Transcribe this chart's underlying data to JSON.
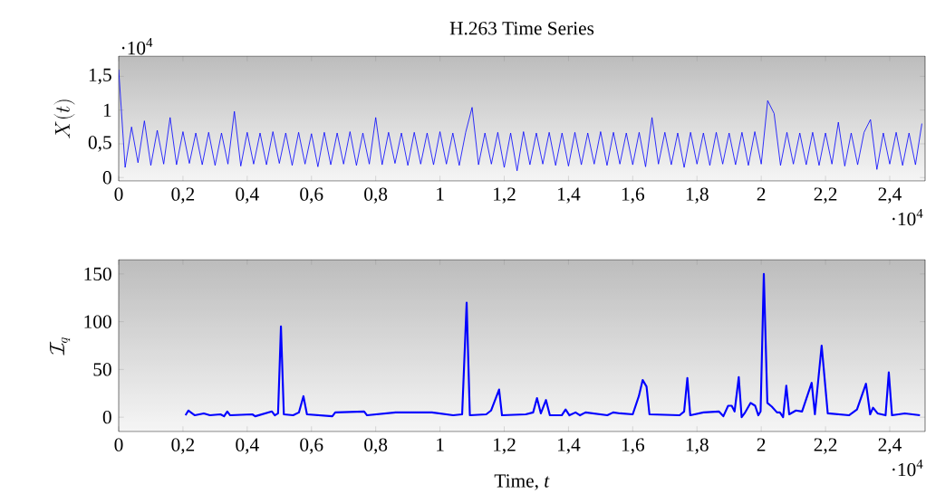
{
  "chart_data": [
    {
      "type": "line",
      "title": "H.263 Time Series",
      "ylabel": "X(t)",
      "annotations": [
        "·10$^{4}$",
        "·10$^{4}$"
      ],
      "x": [
        0,
        0.02,
        0.04,
        0.06,
        0.08,
        0.1,
        0.12,
        0.14,
        0.16,
        0.18,
        0.2,
        0.22,
        0.24,
        0.26,
        0.28,
        0.3,
        0.32,
        0.34,
        0.36,
        0.38,
        0.4,
        0.42,
        0.44,
        0.46,
        0.48,
        0.5,
        0.52,
        0.54,
        0.56,
        0.58,
        0.6,
        0.62,
        0.64,
        0.66,
        0.68,
        0.7,
        0.72,
        0.74,
        0.76,
        0.78,
        0.8,
        0.82,
        0.84,
        0.86,
        0.88,
        0.9,
        0.92,
        0.94,
        0.96,
        0.98,
        1,
        1.02,
        1.04,
        1.06,
        1.08,
        1.1,
        1.12,
        1.14,
        1.16,
        1.18,
        1.2,
        1.22,
        1.24,
        1.26,
        1.28,
        1.3,
        1.32,
        1.34,
        1.36,
        1.38,
        1.4,
        1.42,
        1.44,
        1.46,
        1.48,
        1.5,
        1.52,
        1.54,
        1.56,
        1.58,
        1.6,
        1.62,
        1.64,
        1.66,
        1.68,
        1.7,
        1.72,
        1.74,
        1.76,
        1.78,
        1.8,
        1.82,
        1.84,
        1.86,
        1.88,
        1.9,
        1.92,
        1.94,
        1.96,
        1.98,
        2,
        2.02,
        2.04,
        2.06,
        2.08,
        2.1,
        2.12,
        2.14,
        2.16,
        2.18,
        2.2,
        2.22,
        2.24,
        2.26,
        2.28,
        2.3,
        2.32,
        2.34,
        2.36,
        2.38,
        2.4,
        2.42,
        2.44,
        2.46,
        2.48,
        2.5
      ],
      "series": [
        {
          "color": "#0000ff",
          "values": [
            1.6,
            0.15,
            0.75,
            0.22,
            0.84,
            0.18,
            0.7,
            0.2,
            0.89,
            0.19,
            0.68,
            0.21,
            0.66,
            0.19,
            0.67,
            0.18,
            0.66,
            0.2,
            0.98,
            0.17,
            0.67,
            0.2,
            0.66,
            0.19,
            0.68,
            0.21,
            0.66,
            0.18,
            0.67,
            0.2,
            0.65,
            0.16,
            0.67,
            0.19,
            0.66,
            0.2,
            0.68,
            0.18,
            0.66,
            0.2,
            0.89,
            0.19,
            0.67,
            0.21,
            0.66,
            0.18,
            0.67,
            0.2,
            0.66,
            0.19,
            0.68,
            0.2,
            0.66,
            0.18,
            0.67,
            1.04,
            0.19,
            0.66,
            0.2,
            0.67,
            0.15,
            0.66,
            0.1,
            0.68,
            0.19,
            0.66,
            0.2,
            0.67,
            0.18,
            0.66,
            0.17,
            0.67,
            0.19,
            0.66,
            0.2,
            0.68,
            0.18,
            0.67,
            0.2,
            0.66,
            0.19,
            0.67,
            0.16,
            0.89,
            0.2,
            0.67,
            0.19,
            0.66,
            0.15,
            0.67,
            0.2,
            0.66,
            0.18,
            0.67,
            0.2,
            0.66,
            0.19,
            0.67,
            0.18,
            0.68,
            0.2,
            1.14,
            0.95,
            0.18,
            0.67,
            0.2,
            0.66,
            0.19,
            0.67,
            0.18,
            0.66,
            0.2,
            0.82,
            0.17,
            0.66,
            0.19,
            0.67,
            0.86,
            0.12,
            0.66,
            0.2,
            0.67,
            0.18,
            0.66,
            0.19,
            0.8
          ]
        }
      ],
      "xlim": [
        0,
        2.51
      ],
      "ylim": [
        -0.05,
        1.8
      ],
      "xticks": [
        0,
        {
          "value": 0.2,
          "label": "0,2"
        },
        {
          "value": 0.4,
          "label": "0,4"
        },
        {
          "value": 0.6,
          "label": "0,6"
        },
        {
          "value": 0.8,
          "label": "0,8"
        },
        1,
        {
          "value": 1.2,
          "label": "1,2"
        },
        {
          "value": 1.4,
          "label": "1,4"
        },
        {
          "value": 1.6,
          "label": "1,6"
        },
        {
          "value": 1.8,
          "label": "1,8"
        },
        2,
        {
          "value": 2.2,
          "label": "2,2"
        },
        {
          "value": 2.4,
          "label": "2,4"
        }
      ],
      "yticks": [
        0,
        {
          "value": 0.5,
          "label": "0,5"
        },
        1,
        {
          "value": 1.5,
          "label": "1,5"
        }
      ]
    },
    {
      "type": "line",
      "xlabel": "Time, *t*",
      "ylabel": "\\mathcal{I}_q",
      "annotations": [
        "·10$^{4}$"
      ],
      "x": [
        0.208,
        0.217,
        0.237,
        0.265,
        0.284,
        0.317,
        0.328,
        0.338,
        0.347,
        0.416,
        0.425,
        0.477,
        0.486,
        0.496,
        0.505,
        0.514,
        0.543,
        0.561,
        0.575,
        0.586,
        0.665,
        0.674,
        0.764,
        0.773,
        0.862,
        0.933,
        0.975,
        1.041,
        1.069,
        1.083,
        1.093,
        1.144,
        1.159,
        1.184,
        1.193,
        1.267,
        1.29,
        1.302,
        1.314,
        1.33,
        1.342,
        1.379,
        1.391,
        1.403,
        1.422,
        1.436,
        1.453,
        1.521,
        1.539,
        1.561,
        1.6,
        1.619,
        1.631,
        1.643,
        1.652,
        1.746,
        1.76,
        1.77,
        1.779,
        1.82,
        1.868,
        1.882,
        1.897,
        1.908,
        1.917,
        1.93,
        1.939,
        1.948,
        1.967,
        1.981,
        1.991,
        1.998,
        2.008,
        2.019,
        2.033,
        2.049,
        2.058,
        2.068,
        2.078,
        2.087,
        2.108,
        2.127,
        2.157,
        2.167,
        2.188,
        2.207,
        2.273,
        2.298,
        2.326,
        2.339,
        2.348,
        2.362,
        2.387,
        2.397,
        2.407,
        2.447,
        2.494
      ],
      "series": [
        {
          "color": "#0000ff",
          "values": [
            2,
            7,
            2,
            4,
            2,
            3,
            1,
            6,
            2,
            3,
            1,
            6,
            2,
            4,
            95,
            3,
            2,
            5,
            22,
            3,
            1,
            5,
            6,
            2,
            5,
            5,
            5,
            2,
            3,
            120,
            2,
            3,
            7,
            29,
            2,
            3,
            5,
            20,
            4,
            18,
            2,
            2,
            8,
            2,
            5,
            2,
            5,
            2,
            5,
            4,
            3,
            22,
            39,
            32,
            3,
            2,
            6,
            41,
            2,
            5,
            6,
            1,
            12,
            12,
            6,
            42,
            0,
            4,
            15,
            12,
            2,
            6,
            150,
            15,
            11,
            5,
            5,
            0,
            33,
            3,
            7,
            6,
            36,
            3,
            75,
            4,
            2,
            8,
            35,
            3,
            10,
            4,
            2,
            47,
            2,
            4,
            2
          ]
        }
      ],
      "xlim": [
        0,
        2.51
      ],
      "ylim": [
        -15,
        165
      ],
      "xticks": [
        0,
        {
          "value": 0.2,
          "label": "0,2"
        },
        {
          "value": 0.4,
          "label": "0,4"
        },
        {
          "value": 0.6,
          "label": "0,6"
        },
        {
          "value": 0.8,
          "label": "0,8"
        },
        1,
        {
          "value": 1.2,
          "label": "1,2"
        },
        {
          "value": 1.4,
          "label": "1,4"
        },
        {
          "value": 1.6,
          "label": "1,6"
        },
        {
          "value": 1.8,
          "label": "1,8"
        },
        2,
        {
          "value": 2.2,
          "label": "2,2"
        },
        {
          "value": 2.4,
          "label": "2,4"
        }
      ],
      "yticks": [
        0,
        50,
        100,
        150
      ]
    }
  ]
}
